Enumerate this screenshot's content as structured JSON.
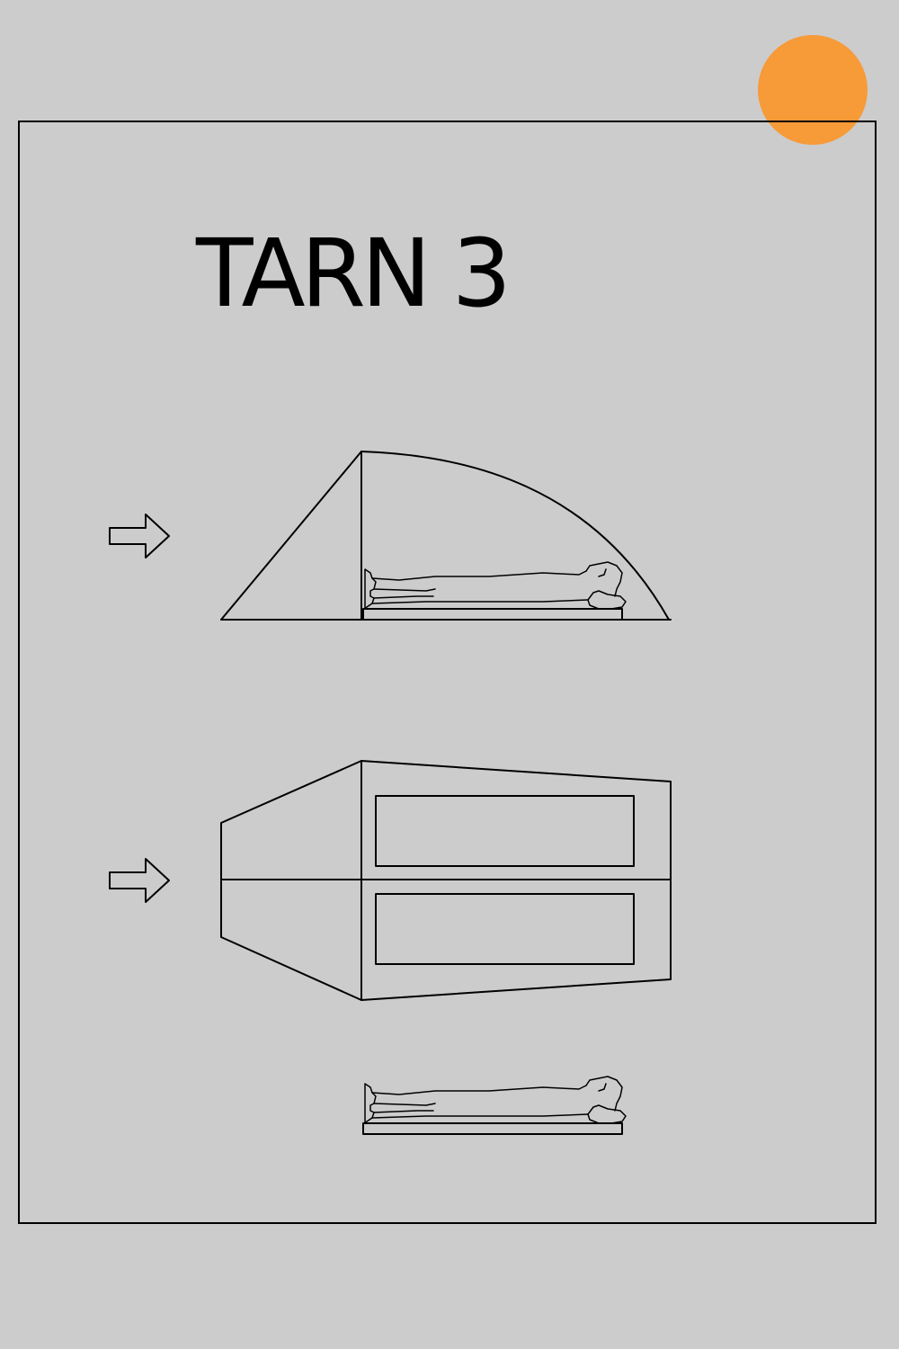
{
  "title": "TARN 3",
  "colors": {
    "background": "#cccccc",
    "accent": "#f79a38",
    "line": "#000000"
  },
  "icons": {
    "side_entry_arrow": "right-arrow-outline",
    "top_entry_arrow": "right-arrow-outline"
  }
}
